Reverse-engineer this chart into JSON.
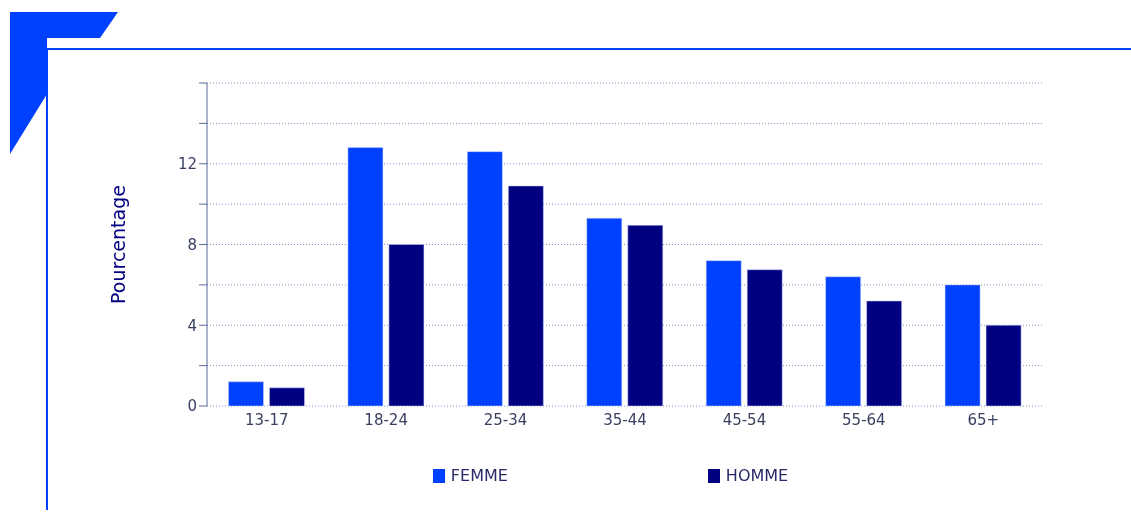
{
  "chart_data": {
    "type": "bar",
    "ylabel": "Pourcentage",
    "categories": [
      "13-17",
      "18-24",
      "25-34",
      "35-44",
      "45-54",
      "55-64",
      "65+"
    ],
    "series": [
      {
        "name": "FEMME",
        "color": "#0040ff",
        "values": [
          1.2,
          12.8,
          12.6,
          9.3,
          7.2,
          6.4,
          6.0
        ]
      },
      {
        "name": "HOMME",
        "color": "#000080",
        "values": [
          0.9,
          8.0,
          10.9,
          8.95,
          6.75,
          5.2,
          4.0
        ]
      }
    ],
    "ylim": [
      0,
      16
    ],
    "yticks": [
      0,
      {
        "value": 2,
        "label": null
      },
      4,
      {
        "value": 6,
        "label": null
      },
      8,
      {
        "value": 10,
        "label": null
      },
      12,
      {
        "value": 14,
        "label": null
      },
      {
        "value": 16,
        "label": null
      }
    ],
    "grid": "y",
    "legend": "bottom"
  }
}
